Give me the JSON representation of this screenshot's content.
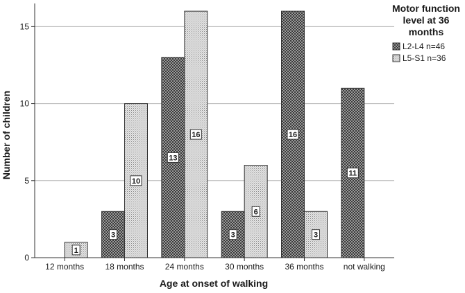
{
  "chart_data": {
    "type": "bar",
    "title": "",
    "xlabel": "Age at onset of walking",
    "ylabel": "Number of children",
    "ylim": [
      0,
      16.5
    ],
    "yticks": [
      0,
      5,
      10,
      15
    ],
    "grid": true,
    "legend_placement": "right",
    "legend_title_lines": [
      "Motor function",
      "level at 36",
      "months"
    ],
    "categories": [
      "12 months",
      "18 months",
      "24 months",
      "30 months",
      "36 months",
      "not walking"
    ],
    "series": [
      {
        "name": "L2-L4 n=46",
        "values": [
          0,
          3,
          13,
          3,
          16,
          11
        ],
        "color": "#7d7d7d",
        "pattern": "dense-checker"
      },
      {
        "name": "L5-S1 n=36",
        "values": [
          1,
          10,
          16,
          6,
          3,
          0
        ],
        "color": "#d3d3d3",
        "pattern": "light-dots"
      }
    ],
    "data_labels": [
      [
        null,
        "3",
        "13",
        "3",
        "16",
        "11"
      ],
      [
        "1",
        "10",
        "16",
        "6",
        "3",
        null
      ]
    ]
  }
}
